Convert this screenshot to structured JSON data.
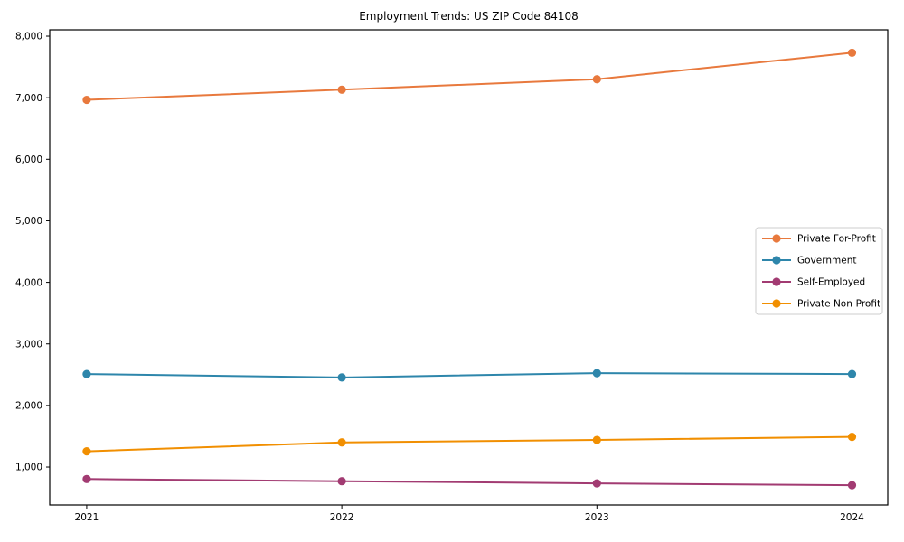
{
  "title": "Employment Trends: US ZIP Code 84108",
  "chart_data": {
    "type": "line",
    "title": "Employment Trends: US ZIP Code 84108",
    "xlabel": "",
    "ylabel": "",
    "x": [
      2021,
      2022,
      2023,
      2024
    ],
    "x_tick_labels": [
      "2021",
      "2022",
      "2023",
      "2024"
    ],
    "yticks": [
      1000,
      2000,
      3000,
      4000,
      5000,
      6000,
      7000,
      8000
    ],
    "ytick_labels": [
      "1,000",
      "2,000",
      "3,000",
      "4,000",
      "5,000",
      "6,000",
      "7,000",
      "8,000"
    ],
    "xlim": [
      2020.855,
      2024.14
    ],
    "ylim": [
      384,
      8103
    ],
    "grid": false,
    "legend_position": "center right",
    "series": [
      {
        "name": "Private For-Profit",
        "color": "#E8793D",
        "values": [
          6965,
          7130,
          7300,
          7730
        ]
      },
      {
        "name": "Government",
        "color": "#2E86AB",
        "values": [
          2510,
          2455,
          2525,
          2510
        ]
      },
      {
        "name": "Self-Employed",
        "color": "#A23B72",
        "values": [
          805,
          770,
          735,
          705
        ]
      },
      {
        "name": "Private Non-Profit",
        "color": "#F18F01",
        "values": [
          1255,
          1400,
          1440,
          1490
        ]
      }
    ],
    "line_width": 2,
    "marker_radius": 4.6,
    "spine_color": "#000000",
    "legend_border_color": "#cccccc",
    "background_color": "#ffffff"
  }
}
